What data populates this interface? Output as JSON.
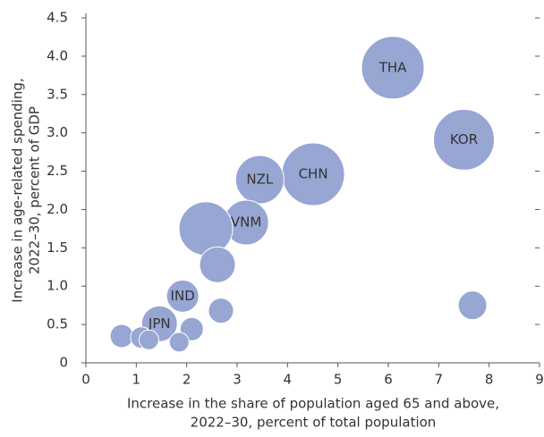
{
  "chart_data": {
    "type": "scatter",
    "x_label": [
      "Increase in the share of population aged 65 and above,",
      "2022–30, percent of total population"
    ],
    "y_label": [
      "Increase in age-related spending,",
      "2022–30, percent of GDP"
    ],
    "color": "#97a6d3",
    "labels": [
      "THA",
      "KOR",
      "CHN",
      "NZL",
      "VNM",
      null,
      null,
      "IND",
      null,
      null,
      "JPN",
      null,
      null,
      null,
      null,
      null
    ],
    "x": [
      6.09,
      7.5,
      4.51,
      3.45,
      3.18,
      2.38,
      2.61,
      1.92,
      2.68,
      7.67,
      1.46,
      2.1,
      0.71,
      1.1,
      1.25,
      1.85
    ],
    "y": [
      3.85,
      2.91,
      2.46,
      2.39,
      1.83,
      1.75,
      1.28,
      0.87,
      0.68,
      0.75,
      0.51,
      0.44,
      0.35,
      0.33,
      0.3,
      0.27
    ],
    "sizes": [
      1225,
      1156,
      1225,
      729,
      625,
      900,
      400,
      324,
      196,
      256,
      400,
      169,
      169,
      144,
      121,
      121
    ],
    "xlim": [
      0,
      9
    ],
    "xticks": [
      0,
      1,
      2,
      3,
      4,
      5,
      6,
      7,
      8,
      9
    ],
    "ylim": [
      0,
      4.5
    ],
    "yticks": [
      0,
      0.5,
      {
        "value": 1,
        "label": "1.0"
      },
      1.5,
      {
        "value": 2,
        "label": "2.0"
      },
      2.5,
      {
        "value": 3,
        "label": "3.0"
      },
      3.5,
      {
        "value": 4,
        "label": "4.0"
      },
      4.5
    ]
  }
}
